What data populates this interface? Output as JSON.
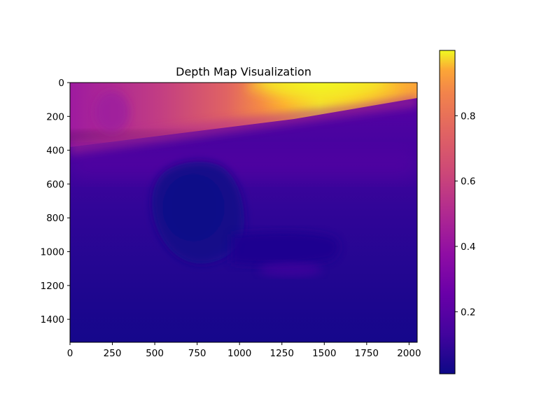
{
  "chart_data": {
    "type": "heatmap",
    "title": "Depth Map Visualization",
    "xlabel": "",
    "ylabel": "",
    "xlim": [
      0,
      2048
    ],
    "ylim": [
      1536,
      0
    ],
    "x_ticks": [
      0,
      250,
      500,
      750,
      1000,
      1250,
      1500,
      1750,
      2000
    ],
    "y_ticks": [
      0,
      200,
      400,
      600,
      800,
      1000,
      1200,
      1400
    ],
    "colormap": "plasma",
    "colorbar": {
      "range": [
        0.01,
        1.0
      ],
      "ticks": [
        0.2,
        0.4,
        0.6,
        0.8
      ]
    },
    "grid": false,
    "scene_regions": [
      {
        "region": "upper band",
        "y": [
          0,
          280
        ],
        "value_range": [
          0.45,
          0.95
        ]
      },
      {
        "region": "bright patch",
        "x": [
          1150,
          1700
        ],
        "y": [
          0,
          150
        ],
        "value": 0.95
      },
      {
        "region": "rounded dark object",
        "center": [
          740,
          760
        ],
        "value": 0.05
      },
      {
        "region": "floor gradient",
        "y": [
          300,
          1536
        ],
        "value_range": [
          0.3,
          0.08
        ]
      }
    ]
  }
}
